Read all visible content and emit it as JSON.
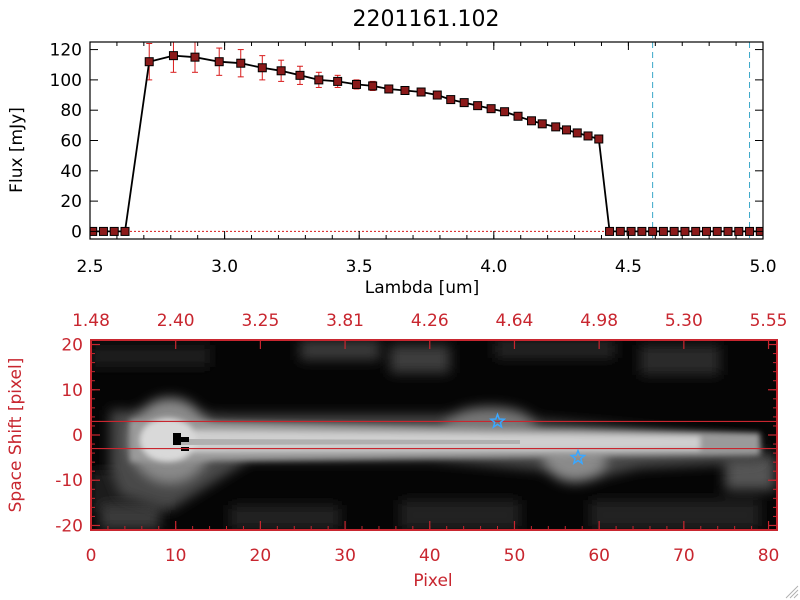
{
  "chart_data": [
    {
      "type": "line",
      "title": "2201161.102",
      "xlabel": "Lambda [um]",
      "ylabel": "Flux [mJy]",
      "xlim": [
        2.5,
        5.0
      ],
      "ylim": [
        -5,
        125
      ],
      "xticks": [
        2.5,
        3.0,
        3.5,
        4.0,
        4.5,
        5.0
      ],
      "xtick_labels": [
        "2.5",
        "3.0",
        "3.5",
        "4.0",
        "4.5",
        "5.0"
      ],
      "yticks": [
        0,
        20,
        40,
        60,
        80,
        100,
        120
      ],
      "ytick_labels": [
        "0",
        "20",
        "40",
        "60",
        "80",
        "100",
        "120"
      ],
      "series": [
        {
          "name": "flux",
          "color": "#000000",
          "marker_color": "#8b1a1a",
          "error_color": "#d81b1b",
          "x": [
            2.51,
            2.55,
            2.59,
            2.63,
            2.72,
            2.81,
            2.89,
            2.98,
            3.06,
            3.14,
            3.21,
            3.28,
            3.35,
            3.42,
            3.49,
            3.55,
            3.61,
            3.67,
            3.73,
            3.79,
            3.84,
            3.89,
            3.94,
            3.99,
            4.04,
            4.09,
            4.14,
            4.18,
            4.23,
            4.27,
            4.31,
            4.35,
            4.39,
            4.43,
            4.47,
            4.51,
            4.55,
            4.59,
            4.63,
            4.67,
            4.71,
            4.75,
            4.79,
            4.83,
            4.87,
            4.91,
            4.95,
            4.99
          ],
          "y": [
            0,
            0,
            0,
            0,
            112,
            116,
            115,
            112,
            111,
            108,
            106,
            103,
            100,
            99,
            97,
            96,
            94,
            93,
            92,
            90,
            87,
            85,
            83,
            81,
            79,
            76,
            73,
            71,
            69,
            67,
            65,
            63,
            61,
            0,
            0,
            0,
            0,
            0,
            0,
            0,
            0,
            0,
            0,
            0,
            0,
            0,
            0,
            0
          ],
          "yerr": [
            0,
            0,
            0,
            0,
            12,
            11,
            10,
            9,
            9,
            8,
            7,
            6,
            5,
            4,
            3,
            3,
            2,
            2,
            2,
            1.5,
            1.5,
            1.5,
            1.5,
            1.5,
            1.5,
            1.5,
            1.5,
            1.5,
            1.5,
            1.5,
            1.5,
            1.5,
            1.5,
            0,
            0,
            0,
            0,
            0,
            0,
            0,
            0,
            0,
            0,
            0,
            0,
            0,
            0,
            0
          ]
        }
      ],
      "vlines": [
        {
          "x": 4.59,
          "color": "#3aa7c8",
          "style": "dashed"
        },
        {
          "x": 4.95,
          "color": "#3aa7c8",
          "style": "dashed"
        }
      ],
      "hline": {
        "y": 0,
        "color": "#d81b1b",
        "style": "dotted"
      }
    },
    {
      "type": "heatmap",
      "xlabel": "Pixel",
      "ylabel": "Space Shift [pixel]",
      "xlim": [
        0,
        81
      ],
      "ylim": [
        -21,
        21
      ],
      "xticks": [
        0,
        10,
        20,
        30,
        40,
        50,
        60,
        70,
        80
      ],
      "xtick_labels": [
        "0",
        "10",
        "20",
        "30",
        "40",
        "50",
        "60",
        "70",
        "80"
      ],
      "yticks": [
        -20,
        -10,
        0,
        10,
        20
      ],
      "ytick_labels": [
        "-20",
        "-10",
        "0",
        "10",
        "20"
      ],
      "top_axis_labels": [
        "1.48",
        "2.40",
        "3.25",
        "3.81",
        "4.26",
        "4.64",
        "4.98",
        "5.30",
        "5.55"
      ],
      "axis_color": "#c8262f",
      "extraction_lines": [
        3,
        -3
      ],
      "stars": [
        {
          "x": 48,
          "y": 3,
          "color": "#3aa7ff"
        },
        {
          "x": 57.5,
          "y": -5,
          "color": "#3aa7ff"
        }
      ]
    }
  ]
}
